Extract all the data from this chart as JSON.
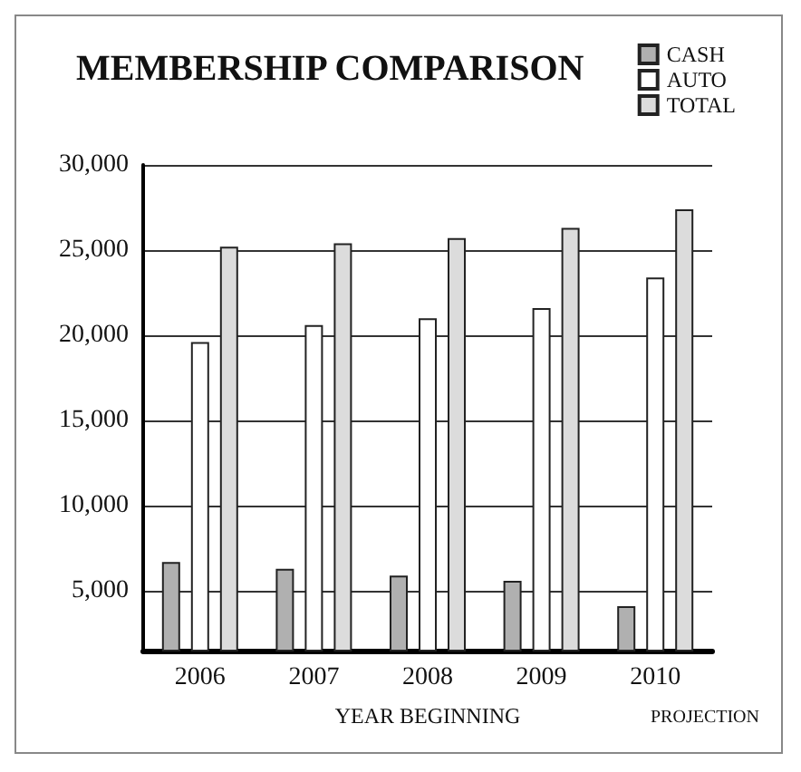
{
  "chart_data": {
    "type": "bar",
    "title": "MEMBERSHIP COMPARISON",
    "xlabel": "YEAR BEGINNING",
    "annotations": [
      "PROJECTION"
    ],
    "categories": [
      "2006",
      "2007",
      "2008",
      "2009",
      "2010"
    ],
    "series": [
      {
        "name": "CASH",
        "color": "#b0b0b0",
        "values": [
          6700,
          6300,
          5900,
          5600,
          4100
        ]
      },
      {
        "name": "AUTO",
        "color": "#ffffff",
        "values": [
          19600,
          20600,
          21000,
          21600,
          23400
        ]
      },
      {
        "name": "TOTAL",
        "color": "#dcdcdc",
        "values": [
          25200,
          25400,
          25700,
          26300,
          27400
        ]
      }
    ],
    "ylim": [
      1500,
      30000
    ],
    "yticks": [
      {
        "value": 5000,
        "label": "5,000"
      },
      {
        "value": 10000,
        "label": "10,000"
      },
      {
        "value": 15000,
        "label": "15,000"
      },
      {
        "value": 20000,
        "label": "20,000"
      },
      {
        "value": 25000,
        "label": "25,000"
      },
      {
        "value": 30000,
        "label": "30,000"
      }
    ],
    "grid": "y",
    "legend": "top right"
  }
}
